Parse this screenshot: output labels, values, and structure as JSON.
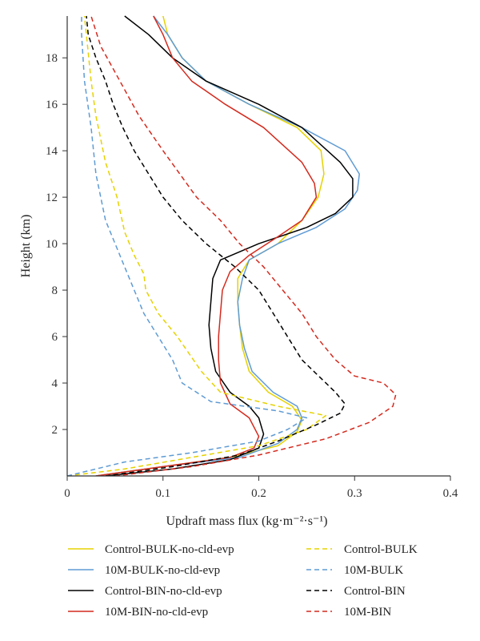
{
  "chart_data": {
    "type": "line",
    "title": "",
    "xlabel": "Updraft mass flux (kg·m⁻²·s⁻¹)",
    "ylabel": "Height (km)",
    "xlim": [
      0,
      0.4
    ],
    "ylim": [
      0,
      19.8
    ],
    "xticks": [
      0,
      0.1,
      0.2,
      0.3,
      0.4
    ],
    "yticks": [
      2,
      4,
      6,
      8,
      10,
      12,
      14,
      16,
      18
    ],
    "grid": false,
    "legend_position": "bottom",
    "series": [
      {
        "name": "Control-BULK-no-cld-evp",
        "color": "#e6d200",
        "dash": "solid",
        "points": [
          [
            0.03,
            0
          ],
          [
            0.1,
            0.4
          ],
          [
            0.17,
            0.8
          ],
          [
            0.22,
            1.3
          ],
          [
            0.24,
            1.9
          ],
          [
            0.245,
            2.4
          ],
          [
            0.235,
            3.0
          ],
          [
            0.21,
            3.6
          ],
          [
            0.19,
            4.5
          ],
          [
            0.183,
            5.5
          ],
          [
            0.18,
            6.5
          ],
          [
            0.178,
            7.5
          ],
          [
            0.178,
            8.5
          ],
          [
            0.19,
            9.3
          ],
          [
            0.22,
            10.0
          ],
          [
            0.245,
            11.0
          ],
          [
            0.262,
            12.0
          ],
          [
            0.268,
            13.0
          ],
          [
            0.265,
            14.0
          ],
          [
            0.24,
            15.0
          ],
          [
            0.19,
            16.0
          ],
          [
            0.145,
            17.0
          ],
          [
            0.12,
            18.0
          ],
          [
            0.105,
            19.0
          ],
          [
            0.1,
            19.8
          ]
        ]
      },
      {
        "name": "10M-BULK-no-cld-evp",
        "color": "#5f9bd4",
        "dash": "solid",
        "points": [
          [
            0.03,
            0
          ],
          [
            0.1,
            0.4
          ],
          [
            0.18,
            0.8
          ],
          [
            0.22,
            1.4
          ],
          [
            0.24,
            2.0
          ],
          [
            0.245,
            2.5
          ],
          [
            0.24,
            3.0
          ],
          [
            0.215,
            3.6
          ],
          [
            0.193,
            4.5
          ],
          [
            0.185,
            5.5
          ],
          [
            0.18,
            6.5
          ],
          [
            0.178,
            7.5
          ],
          [
            0.183,
            8.5
          ],
          [
            0.19,
            9.3
          ],
          [
            0.22,
            10.0
          ],
          [
            0.26,
            10.7
          ],
          [
            0.29,
            11.5
          ],
          [
            0.303,
            12.3
          ],
          [
            0.305,
            13.0
          ],
          [
            0.29,
            14.0
          ],
          [
            0.245,
            15.0
          ],
          [
            0.19,
            16.0
          ],
          [
            0.145,
            17.0
          ],
          [
            0.12,
            18.0
          ],
          [
            0.105,
            19.0
          ],
          [
            0.09,
            19.8
          ]
        ]
      },
      {
        "name": "Control-BIN-no-cld-evp",
        "color": "#000000",
        "dash": "solid",
        "points": [
          [
            0.04,
            0
          ],
          [
            0.11,
            0.3
          ],
          [
            0.17,
            0.7
          ],
          [
            0.2,
            1.2
          ],
          [
            0.205,
            1.8
          ],
          [
            0.2,
            2.5
          ],
          [
            0.19,
            3.0
          ],
          [
            0.17,
            3.6
          ],
          [
            0.155,
            4.5
          ],
          [
            0.15,
            5.5
          ],
          [
            0.148,
            6.5
          ],
          [
            0.15,
            7.5
          ],
          [
            0.152,
            8.5
          ],
          [
            0.16,
            9.3
          ],
          [
            0.2,
            10.0
          ],
          [
            0.25,
            10.7
          ],
          [
            0.28,
            11.3
          ],
          [
            0.298,
            12.0
          ],
          [
            0.298,
            12.8
          ],
          [
            0.285,
            13.5
          ],
          [
            0.245,
            15.0
          ],
          [
            0.2,
            16.0
          ],
          [
            0.145,
            17.0
          ],
          [
            0.11,
            18.0
          ],
          [
            0.085,
            19.0
          ],
          [
            0.06,
            19.8
          ]
        ]
      },
      {
        "name": "10M-BIN-no-cld-evp",
        "color": "#d42a1e",
        "dash": "solid",
        "points": [
          [
            0.03,
            0
          ],
          [
            0.1,
            0.4
          ],
          [
            0.17,
            0.8
          ],
          [
            0.195,
            1.2
          ],
          [
            0.2,
            1.7
          ],
          [
            0.19,
            2.5
          ],
          [
            0.17,
            3.1
          ],
          [
            0.16,
            4.0
          ],
          [
            0.158,
            5.0
          ],
          [
            0.158,
            6.0
          ],
          [
            0.16,
            7.0
          ],
          [
            0.162,
            8.0
          ],
          [
            0.17,
            8.8
          ],
          [
            0.19,
            9.5
          ],
          [
            0.22,
            10.3
          ],
          [
            0.245,
            11.0
          ],
          [
            0.26,
            12.0
          ],
          [
            0.258,
            12.6
          ],
          [
            0.245,
            13.5
          ],
          [
            0.205,
            15.0
          ],
          [
            0.165,
            16.0
          ],
          [
            0.13,
            17.0
          ],
          [
            0.11,
            18.0
          ],
          [
            0.1,
            19.0
          ],
          [
            0.09,
            19.8
          ]
        ]
      },
      {
        "name": "Control-BULK",
        "color": "#e6d200",
        "dash": "dashed",
        "points": [
          [
            0,
            0
          ],
          [
            0.06,
            0.3
          ],
          [
            0.13,
            0.8
          ],
          [
            0.2,
            1.3
          ],
          [
            0.25,
            2.0
          ],
          [
            0.27,
            2.6
          ],
          [
            0.22,
            3.0
          ],
          [
            0.16,
            3.6
          ],
          [
            0.14,
            4.5
          ],
          [
            0.115,
            6.0
          ],
          [
            0.095,
            7.0
          ],
          [
            0.082,
            8.0
          ],
          [
            0.08,
            8.7
          ],
          [
            0.07,
            9.5
          ],
          [
            0.06,
            10.5
          ],
          [
            0.052,
            12.0
          ],
          [
            0.04,
            13.5
          ],
          [
            0.03,
            15.5
          ],
          [
            0.025,
            17.0
          ],
          [
            0.02,
            19.0
          ],
          [
            0.018,
            19.8
          ]
        ]
      },
      {
        "name": "10M-BULK",
        "color": "#5f9bd4",
        "dash": "dashed",
        "points": [
          [
            0,
            0
          ],
          [
            0.06,
            0.6
          ],
          [
            0.13,
            1.0
          ],
          [
            0.2,
            1.5
          ],
          [
            0.23,
            2.0
          ],
          [
            0.25,
            2.5
          ],
          [
            0.22,
            2.8
          ],
          [
            0.15,
            3.2
          ],
          [
            0.12,
            4.0
          ],
          [
            0.11,
            5.0
          ],
          [
            0.095,
            6.0
          ],
          [
            0.08,
            7.0
          ],
          [
            0.07,
            8.0
          ],
          [
            0.06,
            9.0
          ],
          [
            0.05,
            10.0
          ],
          [
            0.04,
            11.0
          ],
          [
            0.035,
            12.0
          ],
          [
            0.03,
            13.0
          ],
          [
            0.025,
            15.0
          ],
          [
            0.018,
            17.0
          ],
          [
            0.015,
            19.0
          ],
          [
            0.015,
            19.8
          ]
        ]
      },
      {
        "name": "Control-BIN",
        "color": "#000000",
        "dash": "dashed",
        "points": [
          [
            0.04,
            0
          ],
          [
            0.11,
            0.4
          ],
          [
            0.18,
            0.9
          ],
          [
            0.22,
            1.5
          ],
          [
            0.26,
            2.2
          ],
          [
            0.285,
            2.7
          ],
          [
            0.29,
            3.1
          ],
          [
            0.28,
            3.6
          ],
          [
            0.265,
            4.2
          ],
          [
            0.245,
            5.0
          ],
          [
            0.23,
            6.0
          ],
          [
            0.215,
            7.0
          ],
          [
            0.2,
            8.0
          ],
          [
            0.175,
            9.0
          ],
          [
            0.145,
            10.0
          ],
          [
            0.12,
            11.0
          ],
          [
            0.1,
            12.0
          ],
          [
            0.085,
            13.0
          ],
          [
            0.07,
            14.0
          ],
          [
            0.058,
            15.0
          ],
          [
            0.048,
            16.0
          ],
          [
            0.04,
            17.0
          ],
          [
            0.03,
            18.0
          ],
          [
            0.022,
            19.0
          ],
          [
            0.02,
            19.8
          ]
        ]
      },
      {
        "name": "10M-BIN",
        "color": "#d42a1e",
        "dash": "dashed",
        "points": [
          [
            0.05,
            0
          ],
          [
            0.13,
            0.4
          ],
          [
            0.2,
            0.9
          ],
          [
            0.27,
            1.6
          ],
          [
            0.315,
            2.3
          ],
          [
            0.34,
            3.0
          ],
          [
            0.343,
            3.5
          ],
          [
            0.33,
            4.0
          ],
          [
            0.3,
            4.3
          ],
          [
            0.28,
            5.0
          ],
          [
            0.26,
            6.0
          ],
          [
            0.245,
            7.0
          ],
          [
            0.225,
            8.0
          ],
          [
            0.205,
            9.0
          ],
          [
            0.18,
            10.0
          ],
          [
            0.16,
            11.0
          ],
          [
            0.135,
            12.0
          ],
          [
            0.1,
            14.0
          ],
          [
            0.075,
            15.5
          ],
          [
            0.055,
            17.0
          ],
          [
            0.035,
            18.5
          ],
          [
            0.025,
            19.8
          ]
        ]
      }
    ]
  }
}
